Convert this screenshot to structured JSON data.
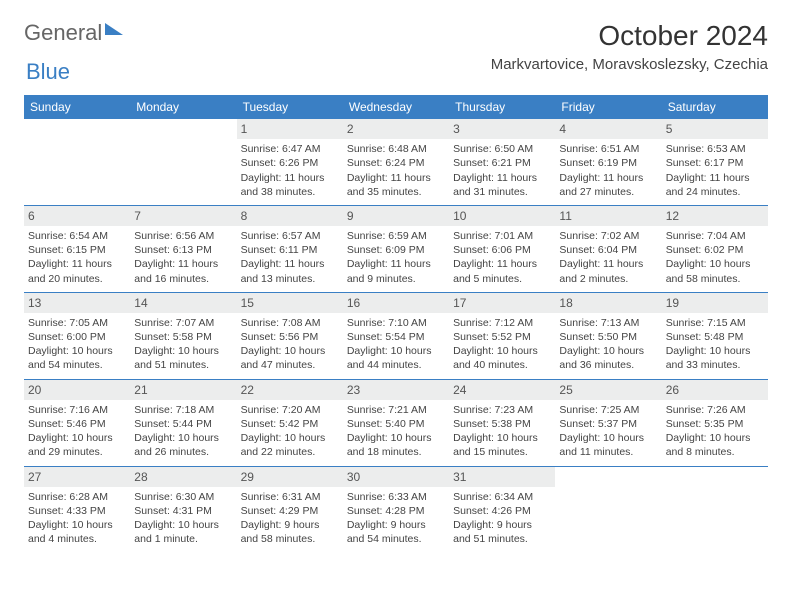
{
  "brand": {
    "part1": "General",
    "part2": "Blue"
  },
  "title": "October 2024",
  "location": "Markvartovice, Moravskoslezsky, Czechia",
  "colors": {
    "header_bg": "#3a7fc4",
    "num_bg": "#eceded",
    "text": "#333333"
  },
  "days": [
    "Sunday",
    "Monday",
    "Tuesday",
    "Wednesday",
    "Thursday",
    "Friday",
    "Saturday"
  ],
  "weeks": [
    [
      null,
      null,
      {
        "n": "1",
        "sr": "6:47 AM",
        "ss": "6:26 PM",
        "dl": "11 hours and 38 minutes."
      },
      {
        "n": "2",
        "sr": "6:48 AM",
        "ss": "6:24 PM",
        "dl": "11 hours and 35 minutes."
      },
      {
        "n": "3",
        "sr": "6:50 AM",
        "ss": "6:21 PM",
        "dl": "11 hours and 31 minutes."
      },
      {
        "n": "4",
        "sr": "6:51 AM",
        "ss": "6:19 PM",
        "dl": "11 hours and 27 minutes."
      },
      {
        "n": "5",
        "sr": "6:53 AM",
        "ss": "6:17 PM",
        "dl": "11 hours and 24 minutes."
      }
    ],
    [
      {
        "n": "6",
        "sr": "6:54 AM",
        "ss": "6:15 PM",
        "dl": "11 hours and 20 minutes."
      },
      {
        "n": "7",
        "sr": "6:56 AM",
        "ss": "6:13 PM",
        "dl": "11 hours and 16 minutes."
      },
      {
        "n": "8",
        "sr": "6:57 AM",
        "ss": "6:11 PM",
        "dl": "11 hours and 13 minutes."
      },
      {
        "n": "9",
        "sr": "6:59 AM",
        "ss": "6:09 PM",
        "dl": "11 hours and 9 minutes."
      },
      {
        "n": "10",
        "sr": "7:01 AM",
        "ss": "6:06 PM",
        "dl": "11 hours and 5 minutes."
      },
      {
        "n": "11",
        "sr": "7:02 AM",
        "ss": "6:04 PM",
        "dl": "11 hours and 2 minutes."
      },
      {
        "n": "12",
        "sr": "7:04 AM",
        "ss": "6:02 PM",
        "dl": "10 hours and 58 minutes."
      }
    ],
    [
      {
        "n": "13",
        "sr": "7:05 AM",
        "ss": "6:00 PM",
        "dl": "10 hours and 54 minutes."
      },
      {
        "n": "14",
        "sr": "7:07 AM",
        "ss": "5:58 PM",
        "dl": "10 hours and 51 minutes."
      },
      {
        "n": "15",
        "sr": "7:08 AM",
        "ss": "5:56 PM",
        "dl": "10 hours and 47 minutes."
      },
      {
        "n": "16",
        "sr": "7:10 AM",
        "ss": "5:54 PM",
        "dl": "10 hours and 44 minutes."
      },
      {
        "n": "17",
        "sr": "7:12 AM",
        "ss": "5:52 PM",
        "dl": "10 hours and 40 minutes."
      },
      {
        "n": "18",
        "sr": "7:13 AM",
        "ss": "5:50 PM",
        "dl": "10 hours and 36 minutes."
      },
      {
        "n": "19",
        "sr": "7:15 AM",
        "ss": "5:48 PM",
        "dl": "10 hours and 33 minutes."
      }
    ],
    [
      {
        "n": "20",
        "sr": "7:16 AM",
        "ss": "5:46 PM",
        "dl": "10 hours and 29 minutes."
      },
      {
        "n": "21",
        "sr": "7:18 AM",
        "ss": "5:44 PM",
        "dl": "10 hours and 26 minutes."
      },
      {
        "n": "22",
        "sr": "7:20 AM",
        "ss": "5:42 PM",
        "dl": "10 hours and 22 minutes."
      },
      {
        "n": "23",
        "sr": "7:21 AM",
        "ss": "5:40 PM",
        "dl": "10 hours and 18 minutes."
      },
      {
        "n": "24",
        "sr": "7:23 AM",
        "ss": "5:38 PM",
        "dl": "10 hours and 15 minutes."
      },
      {
        "n": "25",
        "sr": "7:25 AM",
        "ss": "5:37 PM",
        "dl": "10 hours and 11 minutes."
      },
      {
        "n": "26",
        "sr": "7:26 AM",
        "ss": "5:35 PM",
        "dl": "10 hours and 8 minutes."
      }
    ],
    [
      {
        "n": "27",
        "sr": "6:28 AM",
        "ss": "4:33 PM",
        "dl": "10 hours and 4 minutes."
      },
      {
        "n": "28",
        "sr": "6:30 AM",
        "ss": "4:31 PM",
        "dl": "10 hours and 1 minute."
      },
      {
        "n": "29",
        "sr": "6:31 AM",
        "ss": "4:29 PM",
        "dl": "9 hours and 58 minutes."
      },
      {
        "n": "30",
        "sr": "6:33 AM",
        "ss": "4:28 PM",
        "dl": "9 hours and 54 minutes."
      },
      {
        "n": "31",
        "sr": "6:34 AM",
        "ss": "4:26 PM",
        "dl": "9 hours and 51 minutes."
      },
      null,
      null
    ]
  ],
  "labels": {
    "sunrise": "Sunrise:",
    "sunset": "Sunset:",
    "daylight": "Daylight:"
  }
}
